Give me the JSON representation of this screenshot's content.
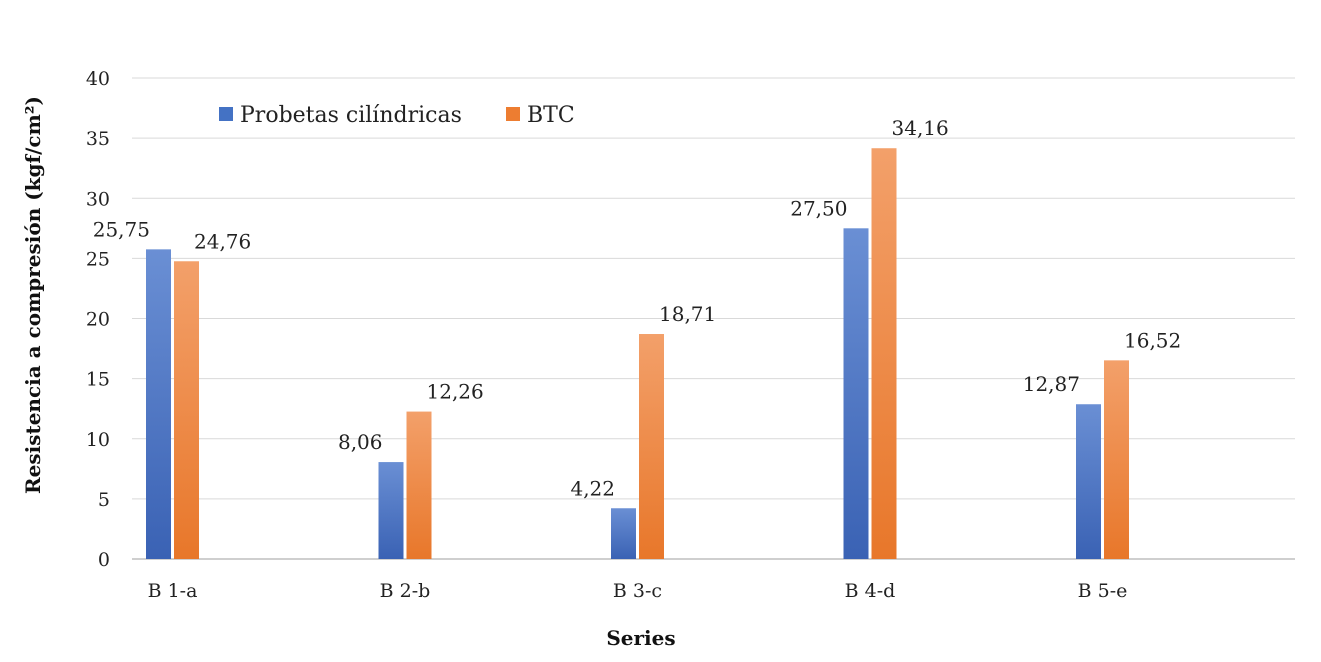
{
  "chart_data": {
    "type": "bar",
    "categories": [
      "B 1-a",
      "B 2-b",
      "B 3-c",
      "B 4-d",
      "B 5-e"
    ],
    "series": [
      {
        "name": "Probetas cilíndricas",
        "values": [
          25.75,
          8.06,
          4.22,
          27.5,
          12.87
        ],
        "labels": [
          "25,75",
          "8,06",
          "4,22",
          "27,50",
          "12,87"
        ],
        "color": "#4472C4"
      },
      {
        "name": "BTC",
        "values": [
          24.76,
          12.26,
          18.71,
          34.16,
          16.52
        ],
        "labels": [
          "24,76",
          "12,26",
          "18,71",
          "34,16",
          "16,52"
        ],
        "color": "#ED7D31"
      }
    ],
    "xlabel": "Series",
    "ylabel": "Resistencia a compresión (kgf/cm²)",
    "ylim": [
      0,
      40
    ],
    "yticks": [
      0,
      5,
      10,
      15,
      20,
      25,
      30,
      35,
      40
    ],
    "grid": true,
    "legend_position": "top-left"
  }
}
